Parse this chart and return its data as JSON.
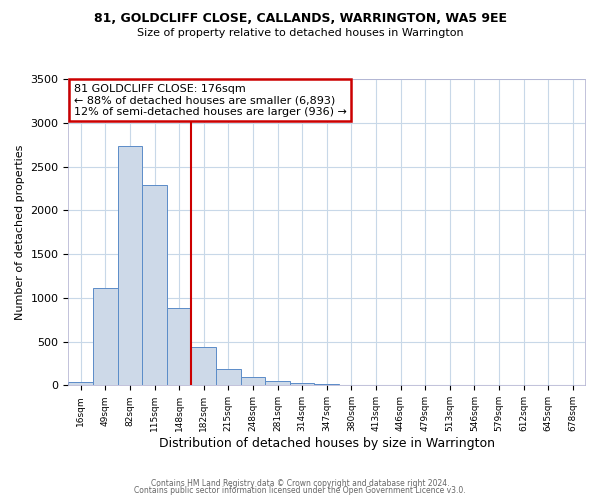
{
  "title1": "81, GOLDCLIFF CLOSE, CALLANDS, WARRINGTON, WA5 9EE",
  "title2": "Size of property relative to detached houses in Warrington",
  "xlabel": "Distribution of detached houses by size in Warrington",
  "ylabel": "Number of detached properties",
  "bin_labels": [
    "16sqm",
    "49sqm",
    "82sqm",
    "115sqm",
    "148sqm",
    "182sqm",
    "215sqm",
    "248sqm",
    "281sqm",
    "314sqm",
    "347sqm",
    "380sqm",
    "413sqm",
    "446sqm",
    "479sqm",
    "513sqm",
    "546sqm",
    "579sqm",
    "612sqm",
    "645sqm",
    "678sqm"
  ],
  "bar_heights": [
    40,
    1110,
    2730,
    2290,
    880,
    440,
    185,
    95,
    45,
    25,
    10,
    5,
    3,
    2,
    1,
    1,
    0,
    0,
    0,
    0,
    0
  ],
  "bar_color": "#cdd9e8",
  "bar_edge_color": "#5b8cc8",
  "ref_line_x": 5,
  "ref_line_label": "81 GOLDCLIFF CLOSE: 176sqm",
  "annotation_line1": "← 88% of detached houses are smaller (6,893)",
  "annotation_line2": "12% of semi-detached houses are larger (936) →",
  "annotation_box_color": "#ffffff",
  "annotation_box_edge": "#cc0000",
  "ref_line_color": "#cc0000",
  "ylim": [
    0,
    3500
  ],
  "yticks": [
    0,
    500,
    1000,
    1500,
    2000,
    2500,
    3000,
    3500
  ],
  "footer1": "Contains HM Land Registry data © Crown copyright and database right 2024.",
  "footer2": "Contains public sector information licensed under the Open Government Licence v3.0.",
  "background_color": "#ffffff",
  "grid_color": "#c8d8e8"
}
